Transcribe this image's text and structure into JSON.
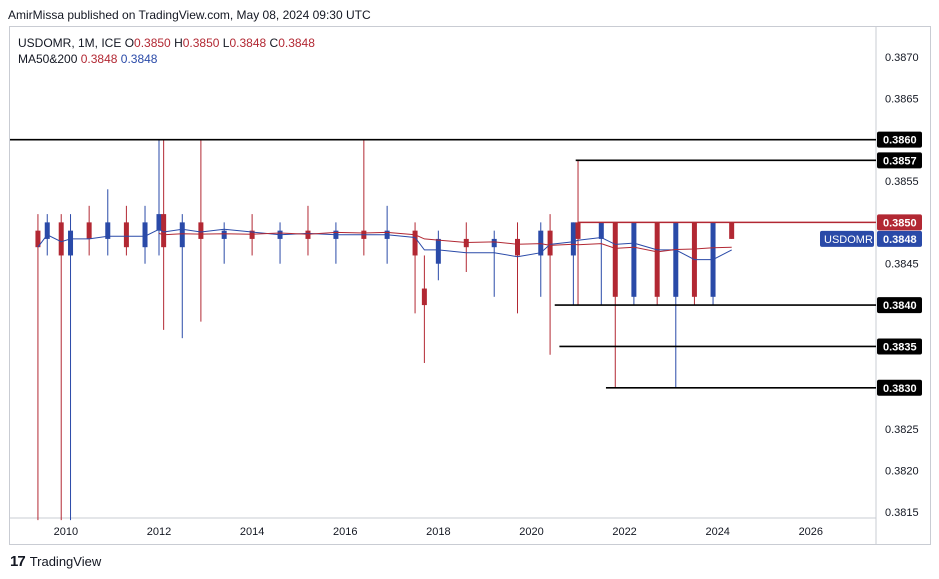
{
  "header": {
    "publish_line": "AmirMissa published on TradingView.com, May 08, 2024 09:30 UTC"
  },
  "legend": {
    "symbol_line_prefix": "USDOMR, 1M, ICE",
    "o_label": "O",
    "o_value": "0.3850",
    "h_label": "H",
    "h_value": "0.3850",
    "l_label": "L",
    "l_value": "0.3848",
    "c_label": "C",
    "c_value": "0.3848",
    "ma_label": "MA50&200",
    "ma50_value": "0.3848",
    "ma200_value": "0.3848"
  },
  "footer": {
    "brand": "TradingView",
    "logo_icon": "tradingview-logo-icon"
  },
  "colors": {
    "up": "#2a4aa8",
    "down": "#b22833",
    "line": "#000000",
    "ma50": "#2a4aa8",
    "ma200": "#b22833"
  },
  "chart_data": {
    "type": "candlestick",
    "symbol": "USDOMR",
    "interval": "1M",
    "x_ticks": [
      "2010",
      "2012",
      "2014",
      "2016",
      "2018",
      "2020",
      "2022",
      "2024",
      "2026"
    ],
    "y_ticks": [
      "0.3815",
      "0.3820",
      "0.3825",
      "0.3830",
      "0.3835",
      "0.3840",
      "0.3845",
      "0.3850",
      "0.3855",
      "0.3857",
      "0.3860",
      "0.3865",
      "0.3870"
    ],
    "xlim": [
      2008.8,
      2027.4
    ],
    "ylim": [
      0.38145,
      0.38735
    ],
    "horizontal_levels": [
      {
        "price": 0.386,
        "label": "0.3860",
        "from": 2008.8,
        "to": 2027.4,
        "color": "#000000"
      },
      {
        "price": 0.38575,
        "label": "0.3857",
        "from": 2020.95,
        "to": 2027.4,
        "color": "#000000"
      },
      {
        "price": 0.385,
        "label": "0.3850",
        "from": 2021.0,
        "to": 2027.4,
        "color": "#b22833"
      },
      {
        "price": 0.384,
        "label": "0.3840",
        "from": 2020.5,
        "to": 2027.4,
        "color": "#000000"
      },
      {
        "price": 0.3835,
        "label": "0.3835",
        "from": 2020.6,
        "to": 2027.4,
        "color": "#000000"
      },
      {
        "price": 0.383,
        "label": "0.3830",
        "from": 2021.6,
        "to": 2027.4,
        "color": "#000000"
      }
    ],
    "price_tag": {
      "label": "USDOMR",
      "value": "0.3848",
      "price": 0.3848
    },
    "candles": [
      {
        "t": 2009.4,
        "o": 0.3849,
        "h": 0.3851,
        "l": 0.3814,
        "c": 0.3847
      },
      {
        "t": 2009.6,
        "o": 0.3848,
        "h": 0.3851,
        "l": 0.3846,
        "c": 0.385
      },
      {
        "t": 2009.9,
        "o": 0.385,
        "h": 0.3851,
        "l": 0.3814,
        "c": 0.3846
      },
      {
        "t": 2010.1,
        "o": 0.3846,
        "h": 0.3851,
        "l": 0.3814,
        "c": 0.3849
      },
      {
        "t": 2010.5,
        "o": 0.385,
        "h": 0.3852,
        "l": 0.3846,
        "c": 0.3848
      },
      {
        "t": 2010.9,
        "o": 0.3848,
        "h": 0.3854,
        "l": 0.3846,
        "c": 0.385
      },
      {
        "t": 2011.3,
        "o": 0.385,
        "h": 0.3852,
        "l": 0.3846,
        "c": 0.3847
      },
      {
        "t": 2011.7,
        "o": 0.3847,
        "h": 0.3852,
        "l": 0.3845,
        "c": 0.385
      },
      {
        "t": 2012.0,
        "o": 0.3849,
        "h": 0.386,
        "l": 0.3846,
        "c": 0.3851
      },
      {
        "t": 2012.1,
        "o": 0.3851,
        "h": 0.386,
        "l": 0.3837,
        "c": 0.3847
      },
      {
        "t": 2012.5,
        "o": 0.3847,
        "h": 0.3851,
        "l": 0.3836,
        "c": 0.385
      },
      {
        "t": 2012.9,
        "o": 0.385,
        "h": 0.386,
        "l": 0.3838,
        "c": 0.3848
      },
      {
        "t": 2013.4,
        "o": 0.3848,
        "h": 0.385,
        "l": 0.3845,
        "c": 0.3849
      },
      {
        "t": 2014.0,
        "o": 0.3849,
        "h": 0.3851,
        "l": 0.3846,
        "c": 0.3848
      },
      {
        "t": 2014.6,
        "o": 0.3848,
        "h": 0.385,
        "l": 0.3845,
        "c": 0.3849
      },
      {
        "t": 2015.2,
        "o": 0.3849,
        "h": 0.3852,
        "l": 0.3846,
        "c": 0.3848
      },
      {
        "t": 2015.8,
        "o": 0.3848,
        "h": 0.385,
        "l": 0.3845,
        "c": 0.3849
      },
      {
        "t": 2016.4,
        "o": 0.3849,
        "h": 0.386,
        "l": 0.3846,
        "c": 0.3848
      },
      {
        "t": 2016.9,
        "o": 0.3848,
        "h": 0.3852,
        "l": 0.3845,
        "c": 0.3849
      },
      {
        "t": 2017.5,
        "o": 0.3849,
        "h": 0.385,
        "l": 0.3839,
        "c": 0.3846
      },
      {
        "t": 2017.7,
        "o": 0.3842,
        "h": 0.3846,
        "l": 0.3833,
        "c": 0.384
      },
      {
        "t": 2018.0,
        "o": 0.3845,
        "h": 0.3849,
        "l": 0.3843,
        "c": 0.3848
      },
      {
        "t": 2018.6,
        "o": 0.3848,
        "h": 0.385,
        "l": 0.3844,
        "c": 0.3847
      },
      {
        "t": 2019.2,
        "o": 0.3847,
        "h": 0.3849,
        "l": 0.3841,
        "c": 0.3848
      },
      {
        "t": 2019.7,
        "o": 0.3848,
        "h": 0.385,
        "l": 0.3839,
        "c": 0.3846
      },
      {
        "t": 2020.2,
        "o": 0.3846,
        "h": 0.385,
        "l": 0.3841,
        "c": 0.3849
      },
      {
        "t": 2020.4,
        "o": 0.3849,
        "h": 0.3851,
        "l": 0.3834,
        "c": 0.3846
      },
      {
        "t": 2020.9,
        "o": 0.3846,
        "h": 0.385,
        "l": 0.384,
        "c": 0.385
      },
      {
        "t": 2021.0,
        "o": 0.385,
        "h": 0.38575,
        "l": 0.384,
        "c": 0.3848
      },
      {
        "t": 2021.5,
        "o": 0.3848,
        "h": 0.385,
        "l": 0.384,
        "c": 0.385
      },
      {
        "t": 2021.8,
        "o": 0.385,
        "h": 0.385,
        "l": 0.383,
        "c": 0.3841
      },
      {
        "t": 2022.2,
        "o": 0.3841,
        "h": 0.385,
        "l": 0.384,
        "c": 0.385
      },
      {
        "t": 2022.7,
        "o": 0.385,
        "h": 0.385,
        "l": 0.384,
        "c": 0.3841
      },
      {
        "t": 2023.1,
        "o": 0.3841,
        "h": 0.385,
        "l": 0.383,
        "c": 0.385
      },
      {
        "t": 2023.5,
        "o": 0.385,
        "h": 0.385,
        "l": 0.384,
        "c": 0.3841
      },
      {
        "t": 2023.9,
        "o": 0.3841,
        "h": 0.385,
        "l": 0.384,
        "c": 0.385
      },
      {
        "t": 2024.3,
        "o": 0.385,
        "h": 0.385,
        "l": 0.3848,
        "c": 0.3848
      }
    ]
  }
}
